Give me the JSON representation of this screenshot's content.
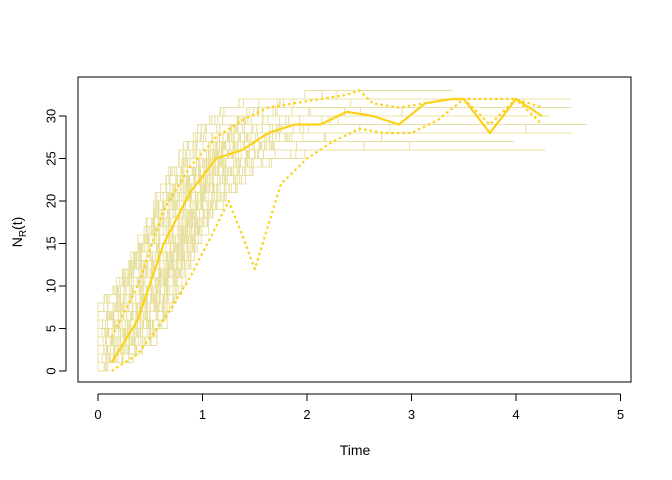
{
  "chart_data": {
    "type": "line",
    "xlabel": "Time",
    "ylabel": {
      "main": "N",
      "sub": "R",
      "suffix": "(t)"
    },
    "xlim": [
      0,
      5
    ],
    "ylim": [
      0,
      33
    ],
    "x_ticks": [
      0,
      1,
      2,
      3,
      4,
      5
    ],
    "y_ticks": [
      0,
      5,
      10,
      15,
      20,
      25,
      30
    ],
    "grid": false,
    "legend": "none",
    "colors": {
      "trajectories": "#e8e0a0",
      "summary": "#fcd116"
    },
    "mean_series": {
      "x": [
        0.13,
        0.38,
        0.63,
        0.88,
        1.13,
        1.38,
        1.63,
        1.88,
        2.13,
        2.38,
        2.63,
        2.88,
        3.13,
        3.38,
        3.5,
        3.75,
        4.0,
        4.25
      ],
      "y": [
        1,
        6,
        15,
        21,
        25,
        26,
        28,
        29,
        29,
        30.5,
        30,
        29,
        31.5,
        32,
        32,
        28,
        32,
        30
      ]
    },
    "lower_band": {
      "x": [
        0.13,
        0.38,
        0.63,
        0.88,
        1.13,
        1.25,
        1.38,
        1.5,
        1.75,
        2.0,
        2.25,
        2.5,
        2.75,
        3.0,
        3.25,
        3.5,
        3.75,
        4.0,
        4.25
      ],
      "y": [
        0,
        2,
        6,
        11,
        17,
        20,
        16,
        12,
        22,
        25,
        27,
        28.5,
        28,
        28,
        29.5,
        32,
        29,
        32,
        29
      ]
    },
    "upper_band": {
      "x": [
        0.13,
        0.38,
        0.63,
        0.88,
        1.13,
        1.38,
        1.63,
        1.88,
        2.13,
        2.38,
        2.5,
        2.63,
        2.88,
        3.13,
        3.38,
        3.5,
        4.0,
        4.25
      ],
      "y": [
        4,
        10,
        19,
        24,
        27.5,
        29.5,
        31,
        31.5,
        32,
        32.5,
        33,
        31.5,
        31,
        31.5,
        32,
        32,
        32,
        31
      ]
    },
    "trajectory_count": 60
  }
}
